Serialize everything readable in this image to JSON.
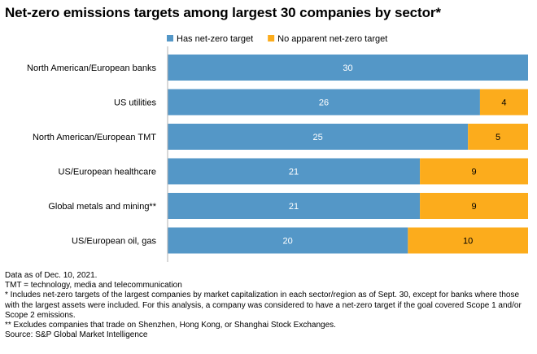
{
  "chart_data": {
    "type": "bar",
    "orientation": "horizontal",
    "stacked": true,
    "title": "Net-zero emissions targets among  largest 30 companies by sector*",
    "categories": [
      "North American/European banks",
      "US utilities",
      "North American/European TMT",
      "US/European healthcare",
      "Global metals and mining**",
      "US/European oil, gas"
    ],
    "series": [
      {
        "name": "Has net-zero target",
        "values": [
          30,
          26,
          25,
          21,
          21,
          20
        ],
        "color": "#5497c7"
      },
      {
        "name": "No apparent net-zero target",
        "values": [
          0,
          4,
          5,
          9,
          9,
          10
        ],
        "color": "#fcac1c"
      }
    ],
    "xlim": [
      0,
      30
    ],
    "grid": false,
    "legend_position": "top"
  },
  "footnotes": [
    "Data as of Dec. 10, 2021.",
    "TMT = technology, media and telecommunication",
    "* Includes net-zero targets of the largest companies by market capitalization in each sector/region as of Sept. 30, except for banks where those with the largest assets were included. For this analysis, a company was considered to have a net-zero target if the goal covered Scope 1 and/or Scope 2 emissions.",
    "** Excludes companies that trade on Shenzhen, Hong Kong, or Shanghai Stock Exchanges.",
    "Source: S&P Global Market Intelligence"
  ]
}
